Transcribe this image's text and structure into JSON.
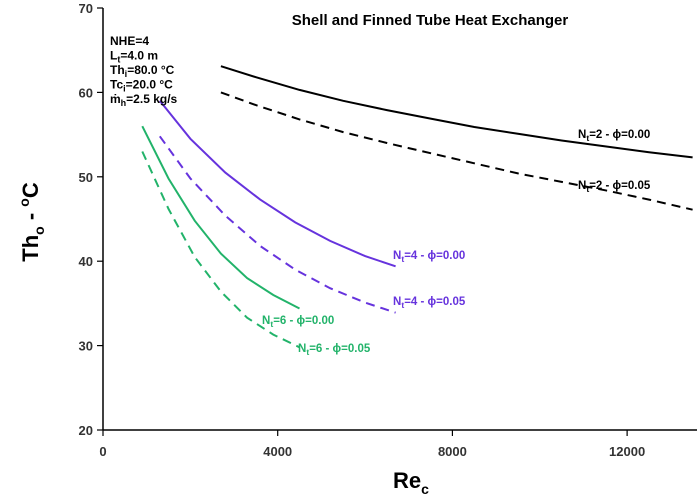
{
  "chart_data": {
    "type": "line",
    "title": "Shell and Finned Tube Heat Exchanger",
    "xlabel": {
      "main": "Re",
      "sub": "c"
    },
    "ylabel": {
      "main": "Th",
      "sub": "o",
      "mid": " - ",
      "sup": "o",
      "unit": "C"
    },
    "xlim": [
      0,
      13600
    ],
    "ylim": [
      20,
      70
    ],
    "xticks": [
      0,
      4000,
      8000,
      12000
    ],
    "yticks": [
      20,
      30,
      40,
      50,
      60,
      70
    ],
    "annotation": [
      {
        "main": "NHE=4"
      },
      {
        "main": "L",
        "sub": "t",
        "rest": "=4.0 m"
      },
      {
        "main": "Th",
        "sub": "i",
        "rest": "=80.0 °C"
      },
      {
        "main": "Tc",
        "sub": "i",
        "rest": "=20.0 °C"
      },
      {
        "main": "ṁ",
        "sub": "h",
        "rest": "=2.5 kg/s"
      }
    ],
    "series": [
      {
        "name": "Nt=2 - phi=0.00",
        "label": {
          "main": "N",
          "sub": "t",
          "rest": "=2 - ϕ=0.00"
        },
        "color": "#000000",
        "dash": false,
        "x": [
          2700,
          3500,
          4500,
          5500,
          6500,
          7500,
          8500,
          9500,
          10500,
          11500,
          12500,
          13500
        ],
        "y": [
          63.1,
          61.8,
          60.3,
          59.0,
          57.9,
          56.9,
          55.9,
          55.1,
          54.3,
          53.6,
          52.9,
          52.3
        ]
      },
      {
        "name": "Nt=2 - phi=0.05",
        "label": {
          "main": "N",
          "sub": "t",
          "rest": "=2 - ϕ=0.05"
        },
        "color": "#000000",
        "dash": true,
        "x": [
          2700,
          3500,
          4500,
          5500,
          6500,
          7500,
          8500,
          9500,
          10500,
          11500,
          12500,
          13500
        ],
        "y": [
          60.0,
          58.5,
          56.8,
          55.3,
          54.0,
          52.8,
          51.6,
          50.4,
          49.4,
          48.4,
          47.3,
          46.1
        ]
      },
      {
        "name": "Nt=4 - phi=0.00",
        "label": {
          "main": "N",
          "sub": "t",
          "rest": "=4 - ϕ=0.00"
        },
        "color": "#6633dd",
        "dash": false,
        "x": [
          1300,
          2000,
          2800,
          3600,
          4400,
          5200,
          6000,
          6700
        ],
        "y": [
          59.0,
          54.5,
          50.5,
          47.3,
          44.6,
          42.4,
          40.6,
          39.4
        ]
      },
      {
        "name": "Nt=4 - phi=0.05",
        "label": {
          "main": "N",
          "sub": "t",
          "rest": "=4 - ϕ=0.05"
        },
        "color": "#6633dd",
        "dash": true,
        "x": [
          1300,
          2000,
          2800,
          3600,
          4400,
          5200,
          6000,
          6700
        ],
        "y": [
          54.8,
          49.8,
          45.4,
          41.8,
          39.0,
          36.8,
          35.1,
          33.9
        ]
      },
      {
        "name": "Nt=6 - phi=0.00",
        "label": {
          "main": "N",
          "sub": "t",
          "rest": "=6 - ϕ=0.00"
        },
        "color": "#22b36a",
        "dash": false,
        "x": [
          900,
          1500,
          2100,
          2700,
          3300,
          3900,
          4500
        ],
        "y": [
          56.0,
          49.8,
          44.8,
          40.9,
          38.0,
          36.0,
          34.4
        ]
      },
      {
        "name": "Nt=6 - phi=0.05",
        "label": {
          "main": "N",
          "sub": "t",
          "rest": "=6 - ϕ=0.05"
        },
        "color": "#22b36a",
        "dash": true,
        "x": [
          900,
          1500,
          2100,
          2700,
          3300,
          3900,
          4500
        ],
        "y": [
          53.0,
          46.2,
          40.5,
          36.4,
          33.3,
          31.3,
          29.8
        ]
      }
    ]
  }
}
